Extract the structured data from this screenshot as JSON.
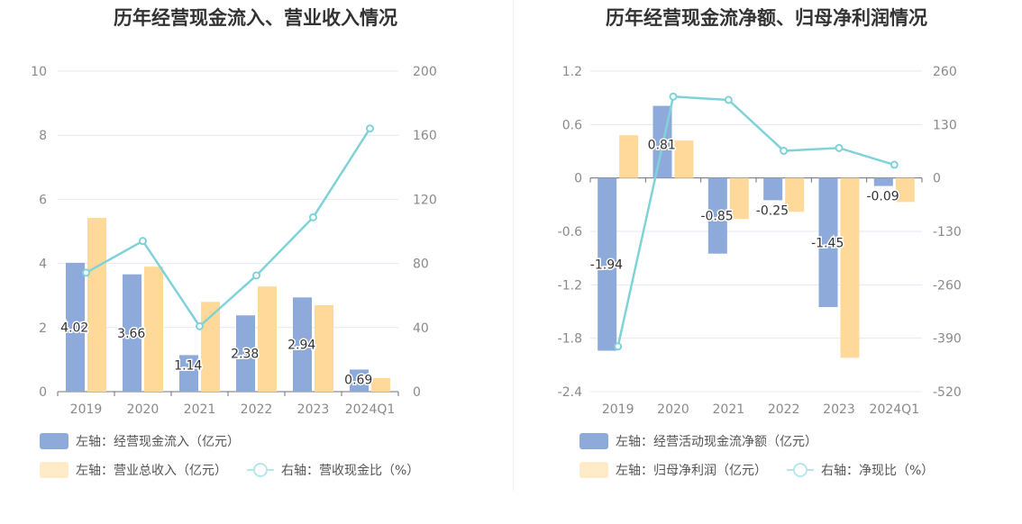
{
  "charts": [
    {
      "title": "历年经营现金流入、营业收入情况"
    },
    {
      "title": "历年经营现金流净额、归母净利润情况"
    }
  ],
  "chart_data": [
    {
      "type": "bar",
      "title": "历年经营现金流入、营业收入情况",
      "categories": [
        "2019",
        "2020",
        "2021",
        "2022",
        "2023",
        "2024Q1"
      ],
      "series": [
        {
          "name": "左轴：经营现金流入（亿元）",
          "axis": "left",
          "type": "bar",
          "color": "#8eaadb",
          "values": [
            4.02,
            3.66,
            1.14,
            2.38,
            2.94,
            0.69
          ],
          "labels": [
            "4.02",
            "3.66",
            "1.14",
            "2.38",
            "2.94",
            "0.69"
          ]
        },
        {
          "name": "左轴：营业总收入（亿元）",
          "axis": "left",
          "type": "bar",
          "color": "#ffd99a",
          "values": [
            5.42,
            3.9,
            2.8,
            3.28,
            2.7,
            0.42
          ]
        },
        {
          "name": "右轴：营收现金比（%）",
          "axis": "right",
          "type": "line",
          "color": "#7fd3d8",
          "values": [
            74.2,
            94,
            40.8,
            72.5,
            108.8,
            164.2
          ]
        }
      ],
      "left_axis": {
        "min": 0,
        "max": 10,
        "ticks": [
          "0",
          "2",
          "4",
          "6",
          "8",
          "10"
        ]
      },
      "right_axis": {
        "min": 0,
        "max": 200,
        "ticks": [
          "0",
          "40",
          "80",
          "120",
          "160",
          "200"
        ]
      },
      "grid": true,
      "legend_position": "bottom-left"
    },
    {
      "type": "bar",
      "title": "历年经营现金流净额、归母净利润情况",
      "categories": [
        "2019",
        "2020",
        "2021",
        "2022",
        "2023",
        "2024Q1"
      ],
      "series": [
        {
          "name": "左轴：经营活动现金流净额（亿元）",
          "axis": "left",
          "type": "bar",
          "color": "#8eaadb",
          "values": [
            -1.94,
            0.81,
            -0.85,
            -0.25,
            -1.45,
            -0.09
          ],
          "labels": [
            "-1.94",
            "0.81",
            "-0.85",
            "-0.25",
            "-1.45",
            "-0.09"
          ]
        },
        {
          "name": "左轴：归母净利润（亿元）",
          "axis": "left",
          "type": "bar",
          "color": "#ffd99a",
          "values": [
            0.48,
            0.42,
            -0.46,
            -0.38,
            -2.02,
            -0.27
          ]
        },
        {
          "name": "右轴：净现比（%）",
          "axis": "right",
          "type": "line",
          "color": "#7fd3d8",
          "values": [
            -410,
            198,
            190,
            66,
            73,
            32
          ]
        }
      ],
      "left_axis": {
        "min": -2.4,
        "max": 1.2,
        "ticks": [
          "-2.4",
          "-1.8",
          "-1.2",
          "-0.6",
          "0",
          "0.6",
          "1.2"
        ]
      },
      "right_axis": {
        "min": -520,
        "max": 260,
        "ticks": [
          "-520",
          "-390",
          "-260",
          "-130",
          "0",
          "130",
          "260"
        ]
      },
      "grid": true,
      "legend_position": "bottom-left"
    }
  ]
}
